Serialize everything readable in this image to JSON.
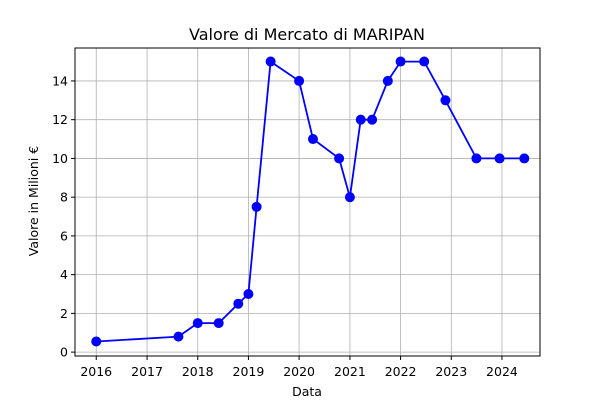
{
  "chart_data": {
    "type": "line",
    "title": "Valore di Mercato di MARIPAN",
    "xlabel": "Data",
    "ylabel": "Valore in Milioni €",
    "xlim": [
      "2015-08-01",
      "2024-10-01"
    ],
    "ylim": [
      -0.2,
      15.7
    ],
    "x_ticks": [
      "2016",
      "2017",
      "2018",
      "2019",
      "2020",
      "2021",
      "2022",
      "2023",
      "2024"
    ],
    "y_ticks": [
      "0",
      "2",
      "4",
      "6",
      "8",
      "10",
      "12",
      "14"
    ],
    "grid": true,
    "colors": {
      "series": "#0000ff"
    },
    "series": [
      {
        "x": [
          "2016-01-01",
          "2017-08-15",
          "2018-01-01",
          "2018-06-01",
          "2018-10-20",
          "2019-01-01",
          "2019-03-01",
          "2019-06-10",
          "2020-01-01",
          "2020-04-10",
          "2020-10-15",
          "2021-01-01",
          "2021-03-20",
          "2021-06-10",
          "2021-10-01",
          "2022-01-01",
          "2022-06-20",
          "2022-11-20",
          "2023-07-01",
          "2023-12-15",
          "2024-06-10"
        ],
        "values": [
          0.55,
          0.8,
          1.5,
          1.5,
          2.5,
          3.0,
          7.5,
          15.0,
          14.0,
          11.0,
          10.0,
          8.0,
          12.0,
          12.0,
          14.0,
          15.0,
          15.0,
          13.0,
          10.0,
          10.0,
          10.0
        ]
      }
    ]
  }
}
